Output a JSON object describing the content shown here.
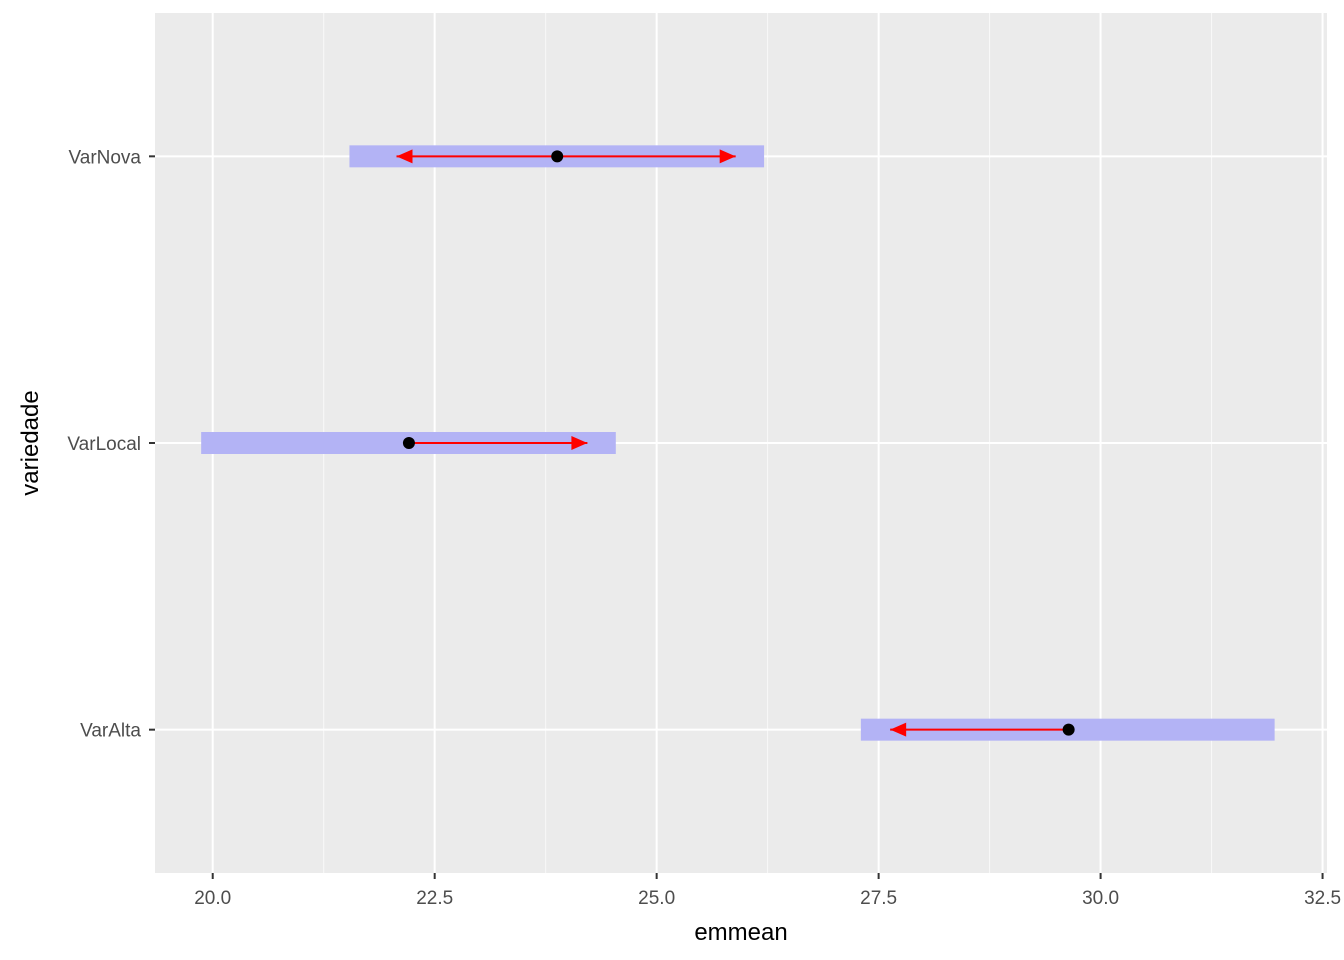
{
  "chart_data": {
    "type": "emmeans-interval",
    "xlabel": "emmean",
    "ylabel": "variedade",
    "xlim": [
      19.35,
      32.55
    ],
    "x_ticks": [
      20.0,
      22.5,
      25.0,
      27.5,
      30.0,
      32.5
    ],
    "x_tick_labels": [
      "20.0",
      "22.5",
      "25.0",
      "27.5",
      "30.0",
      "32.5"
    ],
    "categories": [
      "VarAlta",
      "VarLocal",
      "VarNova"
    ],
    "series": [
      {
        "category": "VarAlta",
        "emmean": 29.64,
        "lower_CL": 27.3,
        "upper_CL": 31.96,
        "comparison_arrow_to": 27.63
      },
      {
        "category": "VarLocal",
        "emmean": 22.21,
        "lower_CL": 19.87,
        "upper_CL": 24.54,
        "comparison_arrow_to": 24.22
      },
      {
        "category": "VarNova",
        "emmean": 23.88,
        "lower_CL": 21.54,
        "upper_CL": 26.21,
        "comparison_arrow_to": [
          22.07,
          25.89
        ]
      }
    ],
    "grid": true,
    "colors": {
      "panel_background": "#ebebeb",
      "grid": "#ffffff",
      "ci_band": "#b3b3f5",
      "arrow": "#ff0000",
      "point": "#000000",
      "tick_label": "#4d4d4d"
    }
  }
}
